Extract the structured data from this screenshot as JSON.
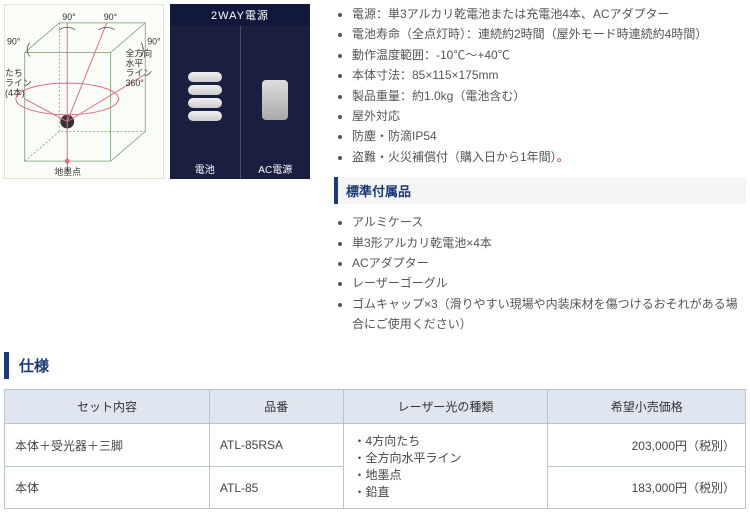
{
  "diagram": {
    "labels": {
      "angle": "90°",
      "left": "たち\nライン\n(4本)",
      "right": "全方向\n水平\nライン\n360°",
      "ground": "地墨点"
    },
    "line_color": "#e46a8a",
    "bg_color": "#fafdf7"
  },
  "photo": {
    "header": "2WAY電源",
    "left_label": "電池",
    "right_label": "AC電源"
  },
  "specs1": [
    "電源：単3アルカリ乾電池または充電池4本、ACアダプター",
    "電池寿命（全点灯時）：連続約2時間（屋外モード時連続約4時間）",
    "動作温度範囲：-10℃～+40℃",
    "本体寸法：85×115×175mm",
    "製品重量：約1.0kg（電池含む）",
    "屋外対応",
    "防塵・防滴IP54",
    "盗難・火災補償付（購入日から1年間）"
  ],
  "section_accessories": "標準付属品",
  "accessories": [
    "アルミケース",
    "単3形アルカリ乾電池×4本",
    "ACアダプター",
    "レーザーゴーグル",
    "ゴムキャップ×3（滑りやすい現場や内装床材を傷つけるおそれがある場合にご使用ください）"
  ],
  "section_spec": "仕様",
  "table": {
    "headers": [
      "セット内容",
      "品番",
      "レーザー光の種類",
      "希望小売価格"
    ],
    "laser_types": [
      "・4方向たち",
      "・全方向水平ライン",
      "・地墨点",
      "・鉛直"
    ],
    "rows": [
      {
        "set": "本体＋受光器＋三脚",
        "model": "ATL-85RSA",
        "price": "203,000円（税別）"
      },
      {
        "set": "本体",
        "model": "ATL-85",
        "price": "183,000円（税別）"
      }
    ]
  }
}
